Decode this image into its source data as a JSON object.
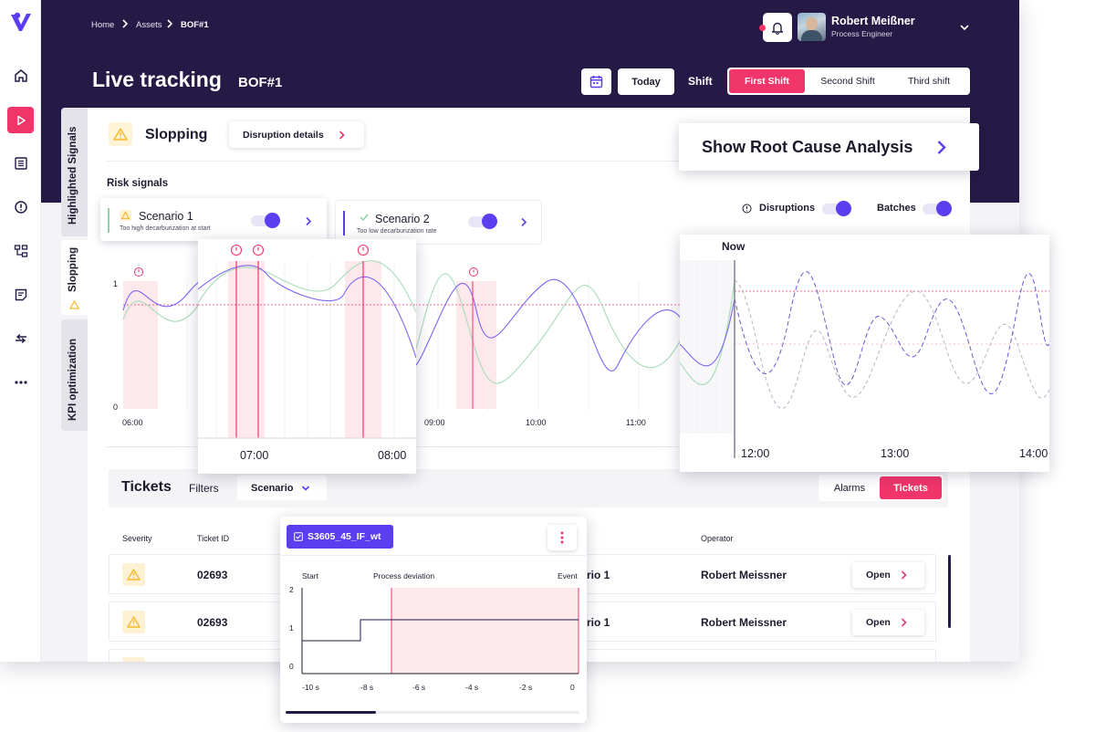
{
  "breadcrumb": [
    "Home",
    "Assets",
    "BOF#1"
  ],
  "page": {
    "title": "Live tracking",
    "subtitle": "BOF#1"
  },
  "user": {
    "name": "Robert Meißner",
    "role": "Process Engineer"
  },
  "toolbar": {
    "today_label": "Today",
    "shift_label": "Shift",
    "shifts": [
      "First Shift",
      "Second Shift",
      "Third shift"
    ],
    "selected_shift": 0
  },
  "side_tabs": [
    "Highlighted Signals",
    "Slopping",
    "KPI optimization"
  ],
  "event": {
    "title": "Slopping",
    "details_button": "Disruption details",
    "root_cause_button": "Show Root Cause Analysis"
  },
  "risk": {
    "label": "Risk signals",
    "scenarios": [
      {
        "title": "Scenario 1",
        "subtitle": "Too high decarburization at start",
        "enabled": true
      },
      {
        "title": "Scenario 2",
        "subtitle": "Too low decarburization rate",
        "enabled": true
      }
    ],
    "toggles": [
      {
        "label": "Disruptions",
        "enabled": true
      },
      {
        "label": "Batches",
        "enabled": true
      }
    ]
  },
  "colors": {
    "accent": "#f0356a",
    "primary": "#5b3ef0",
    "header": "#241a45",
    "warning": "#f5b82e",
    "green": "#8ed3a8"
  },
  "chart_main": {
    "y_ticks": [
      "1",
      "0"
    ],
    "x_ticks": [
      "06:00",
      "09:00",
      "10:00",
      "11:00"
    ],
    "zoom_left_ticks": [
      "07:00",
      "08:00"
    ],
    "zoom_right_now": "Now",
    "zoom_right_ticks": [
      "12:00",
      "13:00",
      "14:00"
    ]
  },
  "tickets": {
    "title": "Tickets",
    "filters_label": "Filters",
    "filter_value": "Scenario",
    "view_options": [
      "Alarms",
      "Tickets"
    ],
    "selected_view": 1,
    "columns": [
      "Severity",
      "Ticket ID",
      "Operator"
    ],
    "rows": [
      {
        "id": "02693",
        "scenario": "rio 1",
        "operator": "Robert Meissner",
        "action": "Open"
      },
      {
        "id": "02693",
        "scenario": "rio 1",
        "operator": "Robert Meissner",
        "action": "Open"
      }
    ]
  },
  "signal": {
    "name": "S3605_45_IF_wt",
    "labels": [
      "Start",
      "Process deviation",
      "Event"
    ],
    "y_ticks": [
      "2",
      "1",
      "0"
    ],
    "x_ticks": [
      "-10 s",
      "-8 s",
      "-6 s",
      "-4 s",
      "-2 s",
      "0"
    ]
  }
}
